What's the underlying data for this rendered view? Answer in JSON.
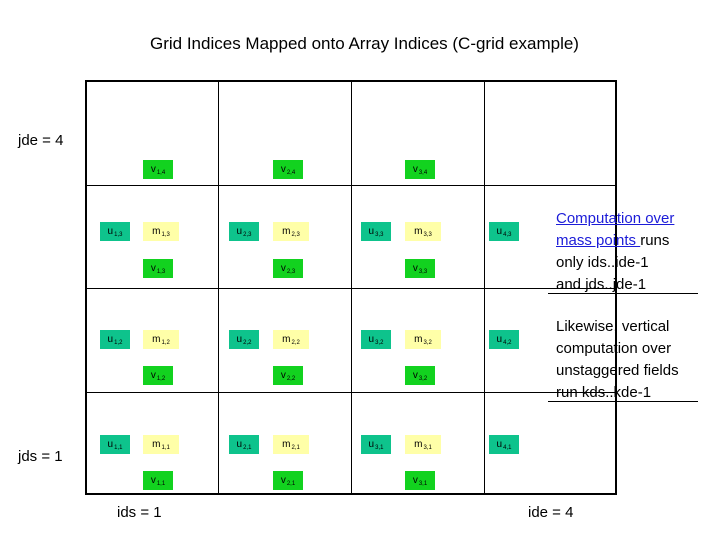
{
  "title": "Grid Indices Mapped onto Array Indices (C-grid example)",
  "axis_labels": {
    "jde": "jde = 4",
    "jds": "jds = 1",
    "ids": "ids = 1",
    "ide": "ide = 4"
  },
  "cells": {
    "u": [
      {
        "base": "u",
        "sub": "1,3"
      },
      {
        "base": "u",
        "sub": "2,3"
      },
      {
        "base": "u",
        "sub": "3,3"
      },
      {
        "base": "u",
        "sub": "4,3"
      },
      {
        "base": "u",
        "sub": "1,2"
      },
      {
        "base": "u",
        "sub": "2,2"
      },
      {
        "base": "u",
        "sub": "3,2"
      },
      {
        "base": "u",
        "sub": "4,2"
      },
      {
        "base": "u",
        "sub": "1,1"
      },
      {
        "base": "u",
        "sub": "2,1"
      },
      {
        "base": "u",
        "sub": "3,1"
      },
      {
        "base": "u",
        "sub": "4,1"
      }
    ],
    "m": [
      {
        "base": "m",
        "sub": "1,3"
      },
      {
        "base": "m",
        "sub": "2,3"
      },
      {
        "base": "m",
        "sub": "3,3"
      },
      {
        "base": "m",
        "sub": "1,2"
      },
      {
        "base": "m",
        "sub": "2,2"
      },
      {
        "base": "m",
        "sub": "3,2"
      },
      {
        "base": "m",
        "sub": "1,1"
      },
      {
        "base": "m",
        "sub": "2,1"
      },
      {
        "base": "m",
        "sub": "3,1"
      }
    ],
    "v": [
      {
        "base": "v",
        "sub": "1,4"
      },
      {
        "base": "v",
        "sub": "2,4"
      },
      {
        "base": "v",
        "sub": "3,4"
      },
      {
        "base": "v",
        "sub": "1,3"
      },
      {
        "base": "v",
        "sub": "2,3"
      },
      {
        "base": "v",
        "sub": "3,3"
      },
      {
        "base": "v",
        "sub": "1,2"
      },
      {
        "base": "v",
        "sub": "2,2"
      },
      {
        "base": "v",
        "sub": "3,2"
      },
      {
        "base": "v",
        "sub": "1,1"
      },
      {
        "base": "v",
        "sub": "2,1"
      },
      {
        "base": "v",
        "sub": "3,1"
      }
    ]
  },
  "notes": {
    "note1": {
      "link_line1": "Computation over",
      "link_line2": "mass points ",
      "line2_rest": "runs",
      "line3": "only ids..ide-1",
      "line4": "and  jds..jde-1"
    },
    "note2": {
      "line1": "Likewise, vertical",
      "line2": "computation over",
      "line3": "unstaggered fields",
      "line4": "run kds..kde-1"
    }
  },
  "colors": {
    "u_fill": "#0ec38c",
    "m_fill": "#ffffa8",
    "v_fill": "#12d21f",
    "link": "#1c1cd8"
  }
}
